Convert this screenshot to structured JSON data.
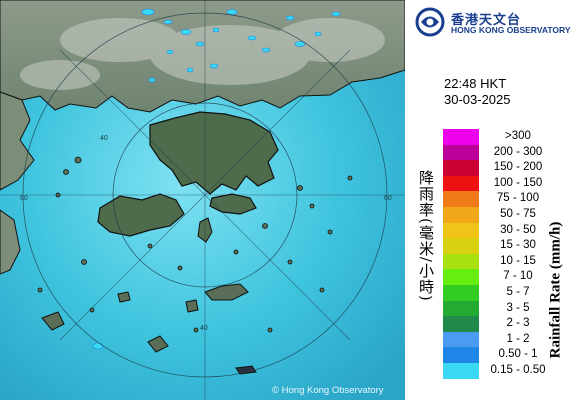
{
  "logo": {
    "name_zh": "香港天文台",
    "name_en": "HONG KONG OBSERVATORY",
    "emblem": "hko-emblem-icon",
    "color": "#1b3f8f"
  },
  "timestamp": {
    "time": "22:48 HKT",
    "date": "30-03-2025"
  },
  "legend": {
    "title_zh": "降雨率(毫米/小時)",
    "title_en": "Rainfall Rate (mm/h)",
    "items": [
      {
        "label": ">300",
        "color": "#ee00ee"
      },
      {
        "label": "200 - 300",
        "color": "#bb0099"
      },
      {
        "label": "150 - 200",
        "color": "#cc0033"
      },
      {
        "label": "100 - 150",
        "color": "#ee1111"
      },
      {
        "label": "75 - 100",
        "color": "#f07a18"
      },
      {
        "label": "50 - 75",
        "color": "#f0a818"
      },
      {
        "label": "30 - 50",
        "color": "#f0c418"
      },
      {
        "label": "15 - 30",
        "color": "#d8d010"
      },
      {
        "label": "10 - 15",
        "color": "#a8e010"
      },
      {
        "label": "7 - 10",
        "color": "#66ee11"
      },
      {
        "label": "5 - 7",
        "color": "#33cc22"
      },
      {
        "label": "3 - 5",
        "color": "#22aa33"
      },
      {
        "label": "2 - 3",
        "color": "#1f8a4a"
      },
      {
        "label": "1 - 2",
        "color": "#4a9cf2"
      },
      {
        "label": "0.50 - 1",
        "color": "#1f86e8"
      },
      {
        "label": "0.15 - 0.50",
        "color": "#3ad8f2"
      }
    ]
  },
  "map": {
    "copyright": "© Hong Kong Observatory",
    "range_ring_labels": [
      "60",
      "60",
      "40",
      "40"
    ],
    "sea_color": "#3fc4de",
    "land_color": "#5e7a5c"
  }
}
